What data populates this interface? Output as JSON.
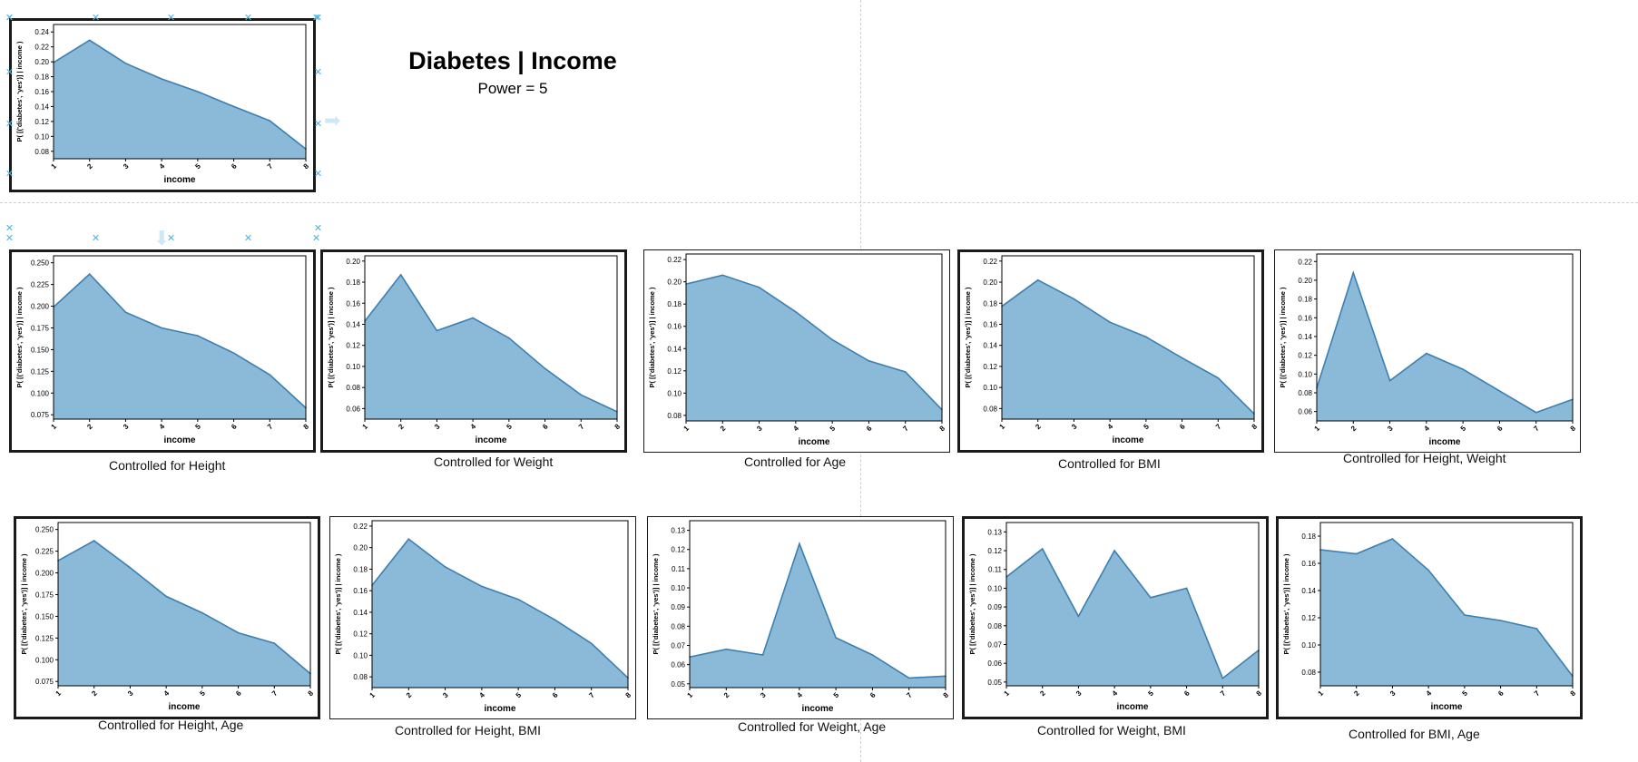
{
  "title": "Diabetes | Income",
  "subtitle": "Power = 5",
  "fill_color": "#8bbad9",
  "line_color": "#3c7fb1",
  "charts": [
    {
      "id": "main",
      "type": "area",
      "x": [
        1,
        2,
        3,
        4,
        5,
        6,
        7,
        8
      ],
      "values": [
        0.199,
        0.229,
        0.198,
        0.177,
        0.16,
        0.14,
        0.121,
        0.083
      ],
      "ylim": [
        0.07,
        0.25
      ],
      "yticks": [
        "0.08",
        "0.10",
        "0.12",
        "0.14",
        "0.16",
        "0.18",
        "0.20",
        "0.22",
        "0.24"
      ],
      "ytickvals": [
        0.08,
        0.1,
        0.12,
        0.14,
        0.16,
        0.18,
        0.2,
        0.22,
        0.24
      ],
      "xlabel": "income",
      "ylabel": "P( [('diabetes', 'yes')] | income )",
      "caption": ""
    },
    {
      "id": "height",
      "type": "area",
      "x": [
        1,
        2,
        3,
        4,
        5,
        6,
        7,
        8
      ],
      "values": [
        0.199,
        0.237,
        0.193,
        0.175,
        0.166,
        0.146,
        0.121,
        0.083
      ],
      "ylim": [
        0.07,
        0.258
      ],
      "yticks": [
        "0.075",
        "0.100",
        "0.125",
        "0.150",
        "0.175",
        "0.200",
        "0.225",
        "0.250"
      ],
      "ytickvals": [
        0.075,
        0.1,
        0.125,
        0.15,
        0.175,
        0.2,
        0.225,
        0.25
      ],
      "xlabel": "income",
      "ylabel": "P( [('diabetes', 'yes')] | income )",
      "caption": "Controlled for Height"
    },
    {
      "id": "weight",
      "type": "area",
      "x": [
        1,
        2,
        3,
        4,
        5,
        6,
        7,
        8
      ],
      "values": [
        0.143,
        0.187,
        0.134,
        0.146,
        0.127,
        0.098,
        0.073,
        0.057
      ],
      "ylim": [
        0.05,
        0.205
      ],
      "yticks": [
        "0.06",
        "0.08",
        "0.10",
        "0.12",
        "0.14",
        "0.16",
        "0.18",
        "0.20"
      ],
      "ytickvals": [
        0.06,
        0.08,
        0.1,
        0.12,
        0.14,
        0.16,
        0.18,
        0.2
      ],
      "xlabel": "income",
      "ylabel": "P( [('diabetes', 'yes')] | income )",
      "caption": "Controlled for Weight"
    },
    {
      "id": "age",
      "type": "area",
      "x": [
        1,
        2,
        3,
        4,
        5,
        6,
        7,
        8
      ],
      "values": [
        0.198,
        0.206,
        0.195,
        0.173,
        0.148,
        0.129,
        0.119,
        0.085
      ],
      "ylim": [
        0.075,
        0.225
      ],
      "yticks": [
        "0.08",
        "0.10",
        "0.12",
        "0.14",
        "0.16",
        "0.18",
        "0.20",
        "0.22"
      ],
      "ytickvals": [
        0.08,
        0.1,
        0.12,
        0.14,
        0.16,
        0.18,
        0.2,
        0.22
      ],
      "xlabel": "income",
      "ylabel": "P( [('diabetes', 'yes')] | income )",
      "caption": "Controlled for Age"
    },
    {
      "id": "bmi",
      "type": "area",
      "x": [
        1,
        2,
        3,
        4,
        5,
        6,
        7,
        8
      ],
      "values": [
        0.177,
        0.202,
        0.184,
        0.162,
        0.148,
        0.128,
        0.109,
        0.075
      ],
      "ylim": [
        0.07,
        0.225
      ],
      "yticks": [
        "0.08",
        "0.10",
        "0.12",
        "0.14",
        "0.16",
        "0.18",
        "0.20",
        "0.22"
      ],
      "ytickvals": [
        0.08,
        0.1,
        0.12,
        0.14,
        0.16,
        0.18,
        0.2,
        0.22
      ],
      "xlabel": "income",
      "ylabel": "P( [('diabetes', 'yes')] | income )",
      "caption": "Controlled for BMI"
    },
    {
      "id": "height_weight",
      "type": "area",
      "x": [
        1,
        2,
        3,
        4,
        5,
        6,
        7,
        8
      ],
      "values": [
        0.085,
        0.208,
        0.093,
        0.122,
        0.105,
        0.082,
        0.059,
        0.073
      ],
      "ylim": [
        0.05,
        0.228
      ],
      "yticks": [
        "0.06",
        "0.08",
        "0.10",
        "0.12",
        "0.14",
        "0.16",
        "0.18",
        "0.20",
        "0.22"
      ],
      "ytickvals": [
        0.06,
        0.08,
        0.1,
        0.12,
        0.14,
        0.16,
        0.18,
        0.2,
        0.22
      ],
      "xlabel": "income",
      "ylabel": "P( [('diabetes', 'yes')] | income )",
      "caption": "Controlled for Height, Weight"
    },
    {
      "id": "height_age",
      "type": "area",
      "x": [
        1,
        2,
        3,
        4,
        5,
        6,
        7,
        8
      ],
      "values": [
        0.214,
        0.237,
        0.206,
        0.173,
        0.154,
        0.131,
        0.119,
        0.084
      ],
      "ylim": [
        0.07,
        0.258
      ],
      "yticks": [
        "0.075",
        "0.100",
        "0.125",
        "0.150",
        "0.175",
        "0.200",
        "0.225",
        "0.250"
      ],
      "ytickvals": [
        0.075,
        0.1,
        0.125,
        0.15,
        0.175,
        0.2,
        0.225,
        0.25
      ],
      "xlabel": "income",
      "ylabel": "P( [('diabetes', 'yes')] | income )",
      "caption": "Controlled for Height, Age"
    },
    {
      "id": "height_bmi",
      "type": "area",
      "x": [
        1,
        2,
        3,
        4,
        5,
        6,
        7,
        8
      ],
      "values": [
        0.165,
        0.208,
        0.182,
        0.164,
        0.152,
        0.133,
        0.111,
        0.079
      ],
      "ylim": [
        0.07,
        0.225
      ],
      "yticks": [
        "0.08",
        "0.10",
        "0.12",
        "0.14",
        "0.16",
        "0.18",
        "0.20",
        "0.22"
      ],
      "ytickvals": [
        0.08,
        0.1,
        0.12,
        0.14,
        0.16,
        0.18,
        0.2,
        0.22
      ],
      "xlabel": "income",
      "ylabel": "P( [('diabetes', 'yes')] | income )",
      "caption": "Controlled for Height, BMI"
    },
    {
      "id": "weight_age",
      "type": "area",
      "x": [
        1,
        2,
        3,
        4,
        5,
        6,
        7,
        8
      ],
      "values": [
        0.064,
        0.068,
        0.065,
        0.123,
        0.074,
        0.065,
        0.053,
        0.054
      ],
      "ylim": [
        0.048,
        0.135
      ],
      "yticks": [
        "0.05",
        "0.06",
        "0.07",
        "0.08",
        "0.09",
        "0.10",
        "0.11",
        "0.12",
        "0.13"
      ],
      "ytickvals": [
        0.05,
        0.06,
        0.07,
        0.08,
        0.09,
        0.1,
        0.11,
        0.12,
        0.13
      ],
      "xlabel": "income",
      "ylabel": "P( [('diabetes', 'yes')] | income )",
      "caption": "Controlled for Weight, Age"
    },
    {
      "id": "weight_bmi",
      "type": "area",
      "x": [
        1,
        2,
        3,
        4,
        5,
        6,
        7,
        8
      ],
      "values": [
        0.106,
        0.121,
        0.085,
        0.12,
        0.095,
        0.1,
        0.052,
        0.067
      ],
      "ylim": [
        0.048,
        0.135
      ],
      "yticks": [
        "0.05",
        "0.06",
        "0.07",
        "0.08",
        "0.09",
        "0.10",
        "0.11",
        "0.12",
        "0.13"
      ],
      "ytickvals": [
        0.05,
        0.06,
        0.07,
        0.08,
        0.09,
        0.1,
        0.11,
        0.12,
        0.13
      ],
      "xlabel": "income",
      "ylabel": "P( [('diabetes', 'yes')] | income )",
      "caption": "Controlled for Weight, BMI"
    },
    {
      "id": "bmi_age",
      "type": "area",
      "x": [
        1,
        2,
        3,
        4,
        5,
        6,
        7,
        8
      ],
      "values": [
        0.17,
        0.167,
        0.178,
        0.155,
        0.122,
        0.118,
        0.112,
        0.077
      ],
      "ylim": [
        0.07,
        0.19
      ],
      "yticks": [
        "0.08",
        "0.10",
        "0.12",
        "0.14",
        "0.16",
        "0.18"
      ],
      "ytickvals": [
        0.08,
        0.1,
        0.12,
        0.14,
        0.16,
        0.18
      ],
      "xlabel": "income",
      "ylabel": "P( [('diabetes', 'yes')] | income )",
      "caption": "Controlled for BMI, Age"
    }
  ]
}
